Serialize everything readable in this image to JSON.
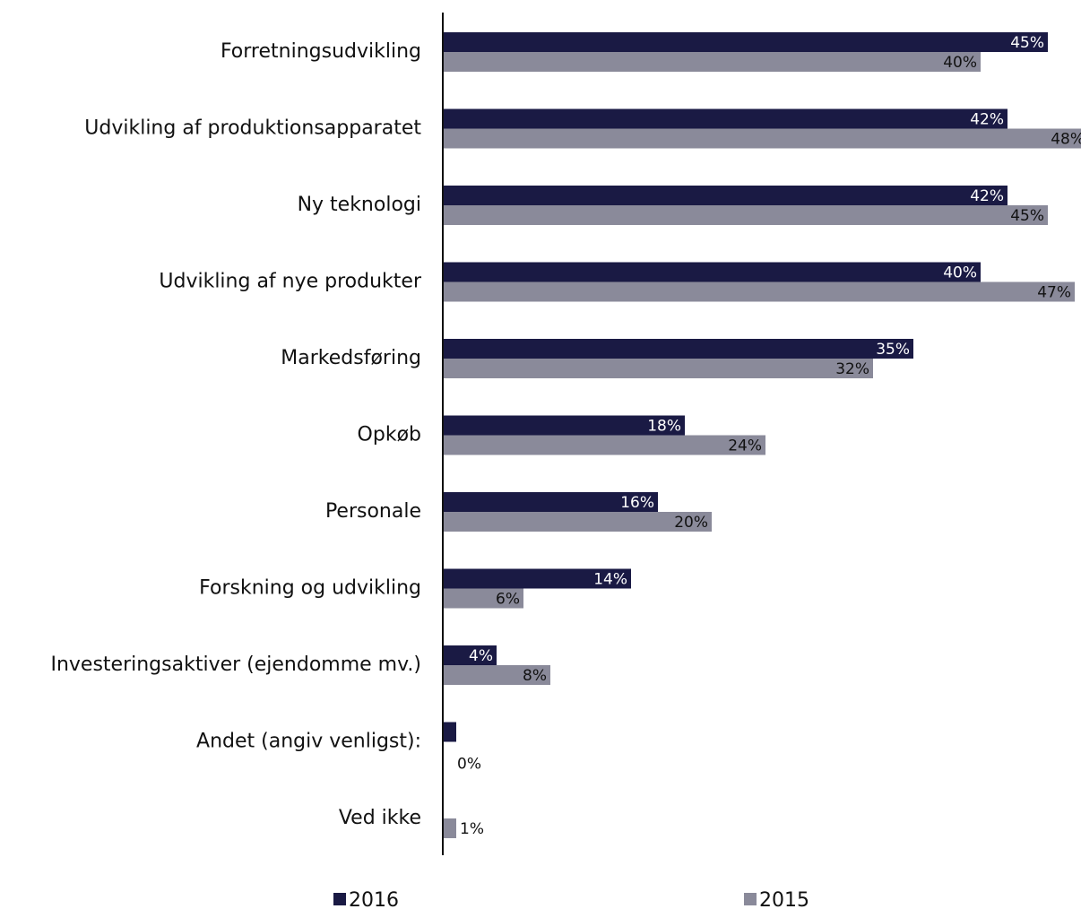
{
  "chart_data": {
    "type": "bar",
    "orientation": "horizontal",
    "categories": [
      "Forretningsudvikling",
      "Udvikling af produktionsapparatet",
      "Ny teknologi",
      "Udvikling af nye produkter",
      "Markedsføring",
      "Opkøb",
      "Personale",
      "Forskning og udvikling",
      "Investeringsaktiver (ejendomme mv.)",
      "Andet (angiv venligst):",
      "Ved ikke"
    ],
    "series": [
      {
        "name": "2016",
        "color": "#1a1a44",
        "values": [
          45,
          42,
          42,
          40,
          35,
          18,
          16,
          14,
          4,
          1,
          0
        ],
        "labels": [
          "45%",
          "42%",
          "42%",
          "40%",
          "35%",
          "18%",
          "16%",
          "14%",
          "4%",
          "",
          ""
        ]
      },
      {
        "name": "2015",
        "color": "#8a8a9a",
        "values": [
          40,
          48,
          45,
          47,
          32,
          24,
          20,
          6,
          8,
          0,
          1
        ],
        "labels": [
          "40%",
          "48%",
          "45%",
          "47%",
          "32%",
          "24%",
          "20%",
          "6%",
          "8%",
          "0%",
          "1%"
        ]
      }
    ],
    "xlim": [
      0,
      48
    ],
    "grid": false,
    "legend": "bottom",
    "label_color_dark_series": "#ffffff",
    "label_color_light_series": "#111111"
  }
}
